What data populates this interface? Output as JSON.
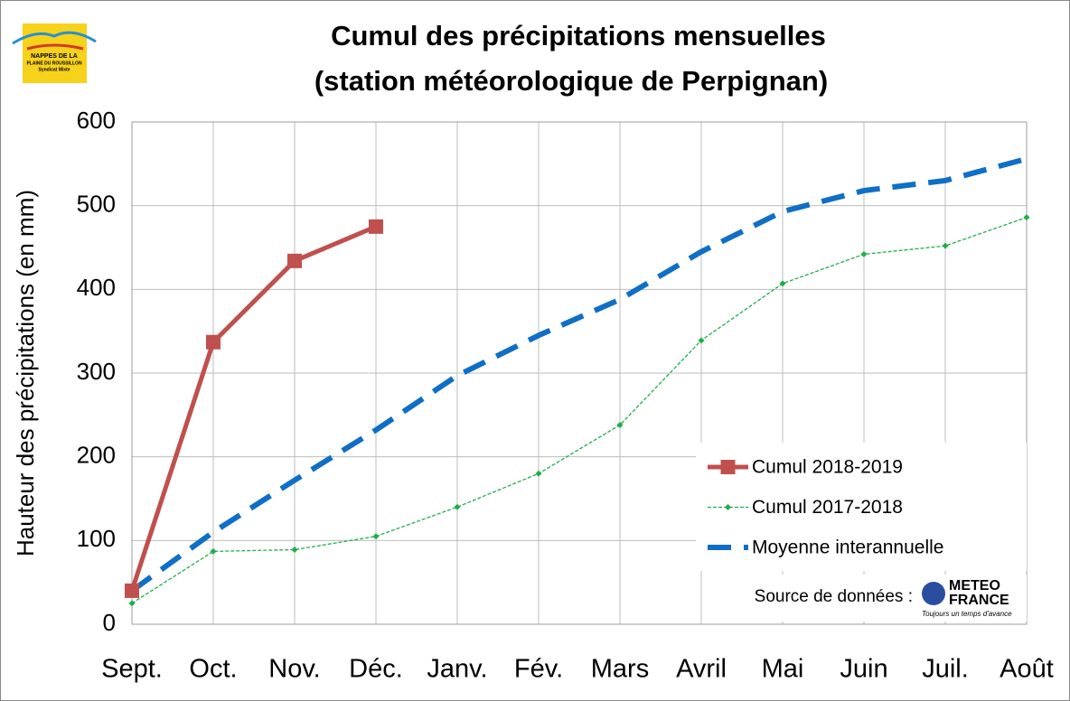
{
  "chart_data": {
    "type": "line",
    "title": "Cumul des précipitations mensuelles",
    "subtitle": "(station météorologique de Perpignan)",
    "y_label": "Hauteur des précipitations (en mm)",
    "categories": [
      "Sept.",
      "Oct.",
      "Nov.",
      "Déc.",
      "Janv.",
      "Fév.",
      "Mars",
      "Avril",
      "Mai",
      "Juin",
      "Juil.",
      "Août"
    ],
    "series": [
      {
        "name": "Cumul 2018-2019",
        "color": "#c0504d",
        "style": "solid",
        "marker": "square",
        "values": [
          40,
          337,
          434,
          475,
          null,
          null,
          null,
          null,
          null,
          null,
          null,
          null
        ]
      },
      {
        "name": "Cumul 2017-2018",
        "color": "#1fae4a",
        "style": "dotted",
        "marker": "diamond",
        "values": [
          25,
          87,
          89,
          105,
          140,
          180,
          238,
          339,
          407,
          442,
          452,
          486
        ]
      },
      {
        "name": "Moyenne interannuelle",
        "color": "#0f6fc6",
        "style": "dashed",
        "marker": "none",
        "values": [
          40,
          110,
          172,
          232,
          297,
          345,
          388,
          445,
          493,
          518,
          530,
          556
        ]
      }
    ],
    "ylim": [
      0,
      600
    ],
    "yticks": [
      0,
      100,
      200,
      300,
      400,
      500,
      600
    ],
    "grid": true,
    "legend": "lower right",
    "source_label": "Source de données :",
    "source_logo": [
      "METEO",
      "FRANCE",
      "Toujours un temps d'avance"
    ],
    "logo": [
      "NAPPES DE LA",
      "PLAINE DU ROUSSILLON",
      "Syndicat Mixte"
    ]
  }
}
